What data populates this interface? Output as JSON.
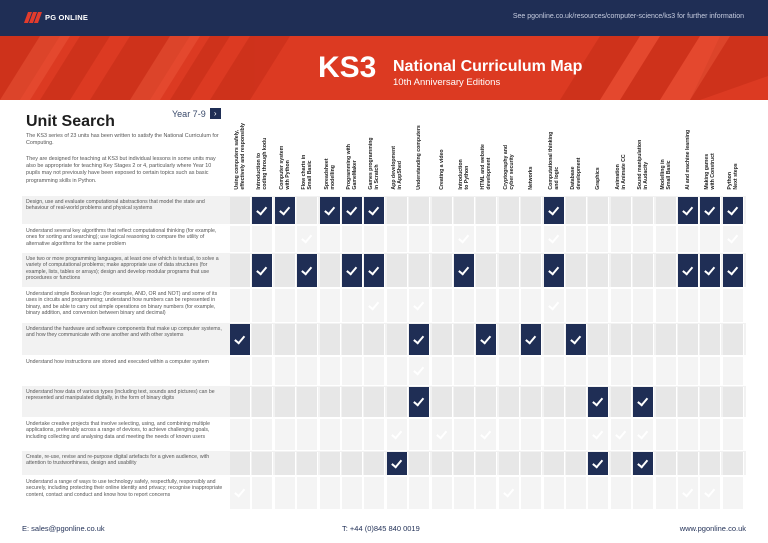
{
  "header": {
    "logo_text": "PG ONLINE",
    "url_note": "See pgonline.co.uk/resources/computer-science/ks3 for further information",
    "accent_color": "#dc3a22",
    "navy_color": "#1f2e55"
  },
  "banner": {
    "ks3": "KS3",
    "title": "National Curriculum Map",
    "subtitle": "10th Anniversary Editions"
  },
  "intro": {
    "title": "Unit Search",
    "year_label": "Year 7-9",
    "year_button_icon": "chevron-right-icon",
    "para1": "The KS3 series of 23 units has been written to satisfy the National Curriculum for Computing.",
    "para2": "They are designed for teaching at KS3 but individual lessons in some units may also be appropriate for teaching Key Stages 2 or 4, particularly where Year 10 pupils may not previously have been exposed to certain topics such as basic programming skills in Python."
  },
  "columns": [
    "Using computers safely,\neffectively and responsibly",
    "Introduction to\ncoding through kodu",
    "Computer system\nwith Python",
    "Flow charts in\nSmall Basic",
    "Spreadsheet\nmodelling",
    "Programming with\nGameMaker",
    "Games programming\nin Scratch",
    "App development\nin AppShed",
    "Understanding computers",
    "Creating a video",
    "Introduction\nto Python",
    "HTML and website\ndevelopment",
    "Cryptography and\ncyber security",
    "Networks",
    "Computational thinking\nand logic",
    "Database\ndevelopment",
    "Graphics",
    "Animation\nin Animate CC",
    "Sound manipulation\nin Audacity",
    "Modelling in\nSmall Basic",
    "AI and machine learning",
    "Making games\nwith Construct",
    "Python\nNext steps"
  ],
  "rows": [
    {
      "text": "Design, use and evaluate computational abstractions that model the state and behaviour of real-world problems and physical systems",
      "checks": [
        1,
        2,
        4,
        5,
        6,
        14,
        20,
        21,
        22
      ]
    },
    {
      "text": "Understand several key algorithms that reflect computational thinking (for example, ones for sorting and searching); use logical reasoning to compare the utility of alternative algorithms for the same problem",
      "checks": [
        3,
        10,
        14,
        22
      ]
    },
    {
      "text": "Use two or more programming languages, at least one of which is textual, to solve a variety of computational problems; make appropriate use of data structures (for example, lists, tables or arrays); design and develop modular programs that use procedures or functions",
      "checks": [
        1,
        3,
        5,
        6,
        10,
        14,
        20,
        21,
        22
      ]
    },
    {
      "text": "Understand simple Boolean logic (for example, AND, OR and NOT) and some of its uses in circuits and programming; understand how numbers can be represented in binary, and be able to carry out simple operations on binary numbers (for example, binary addition, and conversion between binary and decimal)",
      "checks": [
        6,
        8,
        14
      ]
    },
    {
      "text": "Understand the hardware and software components that make up computer systems, and how they communicate with one another and with other systems",
      "checks": [
        0,
        8,
        11,
        13,
        15
      ]
    },
    {
      "text": "Understand how instructions are stored and executed within a computer system",
      "checks": [
        8
      ]
    },
    {
      "text": "Understand how data of various types (including text, sounds and pictures) can be represented and manipulated digitally, in the form of binary digits",
      "checks": [
        8,
        16,
        18
      ]
    },
    {
      "text": "Undertake creative projects that involve selecting, using, and combining multiple applications, preferably across a range of devices, to achieve challenging goals, including collecting and analysing data and meeting the needs of known users",
      "checks": [
        7,
        9,
        11,
        16,
        17,
        18
      ]
    },
    {
      "text": "Create, re-use, revise and re-purpose digital artefacts for a given audience, with attention to trustworthiness, design and usability",
      "checks": [
        7,
        16,
        18
      ]
    },
    {
      "text": "Understand a range of ways to use technology safely, respectfully, responsibly and securely, including protecting their online identity and privacy; recognise inappropriate content, contact and conduct and know how to report concerns",
      "checks": [
        0,
        12,
        20,
        21
      ]
    }
  ],
  "footer": {
    "email": "E: sales@pgonline.co.uk",
    "phone": "T: +44 (0)845 840 0019",
    "web": "www.pgonline.co.uk"
  }
}
